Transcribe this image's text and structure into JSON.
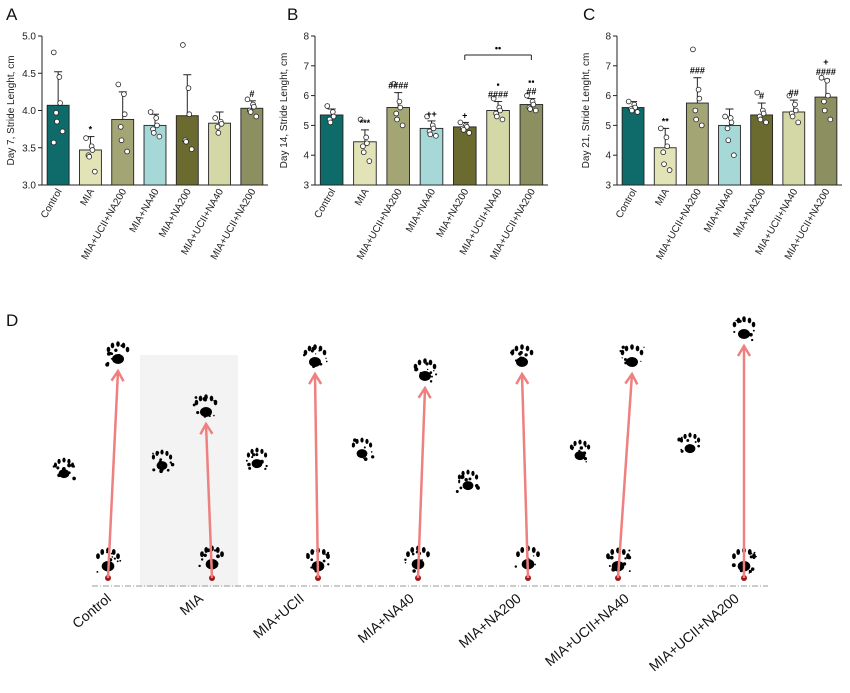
{
  "colors": [
    "#0f6b69",
    "#e2e3b6",
    "#a4a574",
    "#a6d8d8",
    "#6b6b30",
    "#d4d8a6",
    "#8c9060"
  ],
  "chart_data": [
    {
      "panel": "A",
      "type": "bar",
      "ylabel": "Day 7, Stride Lenght, cm",
      "ylim": [
        3.0,
        5.0
      ],
      "yticks": [
        "3.0",
        "3.5",
        "4.0",
        "4.5",
        "5.0"
      ],
      "categories": [
        "Control",
        "MIA",
        "MIA+UCII+NA200",
        "MIA+NA40",
        "MIA+NA200",
        "MIA+UCII+NA40",
        "MIA+UCII+NA200"
      ],
      "values": [
        4.07,
        3.47,
        3.88,
        3.8,
        3.93,
        3.83,
        4.03
      ],
      "errors": [
        0.45,
        0.18,
        0.37,
        0.15,
        0.55,
        0.15,
        0.1
      ],
      "points": [
        [
          4.78,
          4.45,
          4.1,
          3.97,
          3.85,
          3.72,
          3.57
        ],
        [
          3.63,
          3.52,
          3.47,
          3.4,
          3.38,
          3.18
        ],
        [
          4.35,
          4.22,
          3.95,
          3.78,
          3.6,
          3.45
        ],
        [
          3.98,
          3.9,
          3.8,
          3.75,
          3.7,
          3.65
        ],
        [
          4.88,
          4.3,
          3.95,
          3.6,
          3.58,
          3.48
        ],
        [
          3.9,
          3.85,
          3.82,
          3.78,
          3.7
        ],
        [
          4.15,
          4.08,
          4.05,
          4.0,
          3.98,
          3.92
        ]
      ],
      "annotations": [
        "",
        "*",
        "",
        "",
        "",
        "",
        "#"
      ]
    },
    {
      "panel": "B",
      "type": "bar",
      "ylabel": "Day 14, Stride Lenght, cm",
      "ylim": [
        3,
        8
      ],
      "yticks": [
        "3",
        "4",
        "5",
        "6",
        "7",
        "8"
      ],
      "categories": [
        "Control",
        "MIA",
        "MIA+UCII+NA200",
        "MIA+NA40",
        "MIA+NA200",
        "MIA+UCII+NA40",
        "MIA+UCII+NA200"
      ],
      "values": [
        5.35,
        4.45,
        5.6,
        4.9,
        4.95,
        5.5,
        5.7
      ],
      "errors": [
        0.2,
        0.4,
        0.5,
        0.25,
        0.15,
        0.3,
        0.2
      ],
      "points": [
        [
          5.65,
          5.45,
          5.3,
          5.2,
          5.1
        ],
        [
          5.2,
          4.6,
          4.4,
          4.3,
          4.1,
          3.8
        ],
        [
          6.4,
          5.8,
          5.6,
          5.4,
          5.2,
          5.0
        ],
        [
          5.3,
          5.0,
          4.9,
          4.8,
          4.7,
          4.65
        ],
        [
          5.1,
          5.0,
          4.95,
          4.9,
          4.85,
          4.75
        ],
        [
          5.9,
          5.6,
          5.5,
          5.4,
          5.3,
          5.2
        ],
        [
          6.0,
          5.8,
          5.7,
          5.6,
          5.55,
          5.5
        ]
      ],
      "annotations": [
        "",
        "***",
        "####",
        "++",
        "+",
        "####",
        "##"
      ],
      "annotations_upper": [
        "",
        "",
        "",
        "",
        "",
        "▪",
        "▪▪"
      ],
      "bracket": {
        "from": 4,
        "to": 6,
        "label": "••"
      }
    },
    {
      "panel": "C",
      "type": "bar",
      "ylabel": "Day 21, Stride Lenght, cm",
      "ylim": [
        3,
        8
      ],
      "yticks": [
        "3",
        "4",
        "5",
        "6",
        "7",
        "8"
      ],
      "categories": [
        "Control",
        "MIA",
        "MIA+UCII+NA200",
        "MIA+NA40",
        "MIA+NA200",
        "MIA+UCII+NA40",
        "MIA+UCII+NA200"
      ],
      "values": [
        5.6,
        4.25,
        5.75,
        5.0,
        5.35,
        5.45,
        5.95
      ],
      "errors": [
        0.2,
        0.65,
        0.85,
        0.55,
        0.4,
        0.4,
        0.6
      ],
      "points": [
        [
          5.8,
          5.7,
          5.6,
          5.55,
          5.5,
          5.45
        ],
        [
          4.9,
          4.6,
          4.3,
          4.1,
          3.7,
          3.5
        ],
        [
          7.55,
          6.2,
          5.9,
          5.5,
          5.2,
          5.0
        ],
        [
          5.3,
          5.25,
          5.1,
          4.9,
          4.5,
          4.0
        ],
        [
          6.1,
          5.5,
          5.4,
          5.3,
          5.2,
          5.1
        ],
        [
          6.0,
          5.7,
          5.5,
          5.4,
          5.3,
          5.1
        ],
        [
          6.6,
          6.5,
          6.0,
          5.8,
          5.5,
          5.2
        ]
      ],
      "annotations": [
        "",
        "**",
        "###",
        "",
        "#",
        "##",
        "####"
      ],
      "annotations_upper": [
        "",
        "",
        "",
        "",
        "",
        "",
        "+"
      ]
    }
  ],
  "footprints": {
    "panel": "D",
    "labels": [
      "Control",
      "MIA",
      "MIA+UCII",
      "MIA+NA40",
      "MIA+NA200",
      "MIA+UCII+NA40",
      "MIA+UCII+NA200"
    ]
  }
}
